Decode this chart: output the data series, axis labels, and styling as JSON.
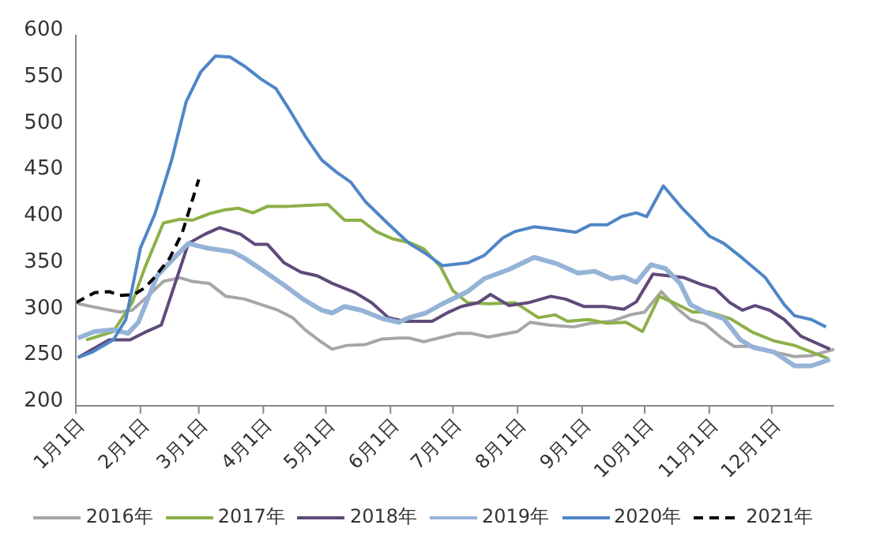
{
  "chart_data": {
    "type": "line",
    "ylim": [
      200,
      600
    ],
    "yticks": [
      200,
      250,
      300,
      350,
      400,
      450,
      500,
      550,
      600
    ],
    "xlim": [
      "--01-01",
      "--12-31"
    ],
    "xticks": [
      {
        "value": "--01-01",
        "label": "1月1日"
      },
      {
        "value": "--02-01",
        "label": "2月1日"
      },
      {
        "value": "--03-01",
        "label": "3月1日"
      },
      {
        "value": "--04-01",
        "label": "4月1日"
      },
      {
        "value": "--05-01",
        "label": "5月1日"
      },
      {
        "value": "--06-01",
        "label": "6月1日"
      },
      {
        "value": "--07-01",
        "label": "7月1日"
      },
      {
        "value": "--08-01",
        "label": "8月1日"
      },
      {
        "value": "--09-01",
        "label": "9月1日"
      },
      {
        "value": "--10-01",
        "label": "10月1日"
      },
      {
        "value": "--11-01",
        "label": "11月1日"
      },
      {
        "value": "--12-01",
        "label": "12月1日"
      }
    ],
    "grid": false,
    "legend": "bottom",
    "marker": "none",
    "series": [
      {
        "name": "2016年",
        "color": "#a6a6a6",
        "line_style": "solid",
        "x": [
          "--01-02",
          "--01-13",
          "--01-22",
          "--01-28",
          "--02-04",
          "--02-12",
          "--02-20",
          "--02-26",
          "--03-06",
          "--03-14",
          "--03-23",
          "--03-31",
          "--04-08",
          "--04-15",
          "--04-21",
          "--04-28",
          "--05-04",
          "--05-11",
          "--05-20",
          "--05-28",
          "--06-05",
          "--06-10",
          "--06-17",
          "--06-26",
          "--07-03",
          "--07-10",
          "--07-18",
          "--07-25",
          "--08-01",
          "--08-07",
          "--08-16",
          "--08-28",
          "--09-05",
          "--09-15",
          "--09-24",
          "--10-01",
          "--10-09",
          "--10-16",
          "--10-23",
          "--10-30",
          "--11-07",
          "--11-13",
          "--11-22",
          "--12-02",
          "--12-12",
          "--12-20",
          "--12-31"
        ],
        "values": [
          310,
          305,
          301,
          303,
          317,
          334,
          338,
          334,
          332,
          318,
          315,
          309,
          303,
          295,
          282,
          270,
          261,
          265,
          266,
          272,
          273,
          273,
          269,
          274,
          278,
          278,
          274,
          277,
          280,
          290,
          287,
          285,
          289,
          291,
          298,
          301,
          323,
          306,
          293,
          288,
          273,
          264,
          264,
          258,
          253,
          254,
          261
        ]
      },
      {
        "name": "2017年",
        "color": "#8db048",
        "line_style": "solid",
        "x": [
          "--01-06",
          "--01-19",
          "--01-28",
          "--02-03",
          "--02-12",
          "--02-20",
          "--02-26",
          "--03-06",
          "--03-13",
          "--03-20",
          "--03-27",
          "--04-03",
          "--04-13",
          "--04-21",
          "--05-02",
          "--05-10",
          "--05-18",
          "--05-25",
          "--06-02",
          "--06-10",
          "--06-17",
          "--06-25",
          "--07-01",
          "--07-08",
          "--07-18",
          "--07-31",
          "--08-11",
          "--08-19",
          "--08-25",
          "--09-04",
          "--09-13",
          "--09-22",
          "--09-30",
          "--10-08",
          "--10-15",
          "--10-24",
          "--11-01",
          "--11-11",
          "--11-22",
          "--12-02",
          "--12-12",
          "--12-28"
        ],
        "values": [
          271,
          280,
          311,
          348,
          397,
          401,
          400,
          407,
          411,
          413,
          408,
          415,
          415,
          416,
          417,
          400,
          400,
          388,
          380,
          376,
          369,
          350,
          324,
          311,
          310,
          311,
          295,
          298,
          291,
          293,
          289,
          290,
          280,
          318,
          311,
          301,
          301,
          294,
          279,
          270,
          265,
          251
        ]
      },
      {
        "name": "2018年",
        "color": "#5f4a7b",
        "line_style": "solid",
        "x": [
          "--01-02",
          "--01-17",
          "--01-27",
          "--02-03",
          "--02-11",
          "--02-24",
          "--03-04",
          "--03-11",
          "--03-21",
          "--03-28",
          "--04-03",
          "--04-11",
          "--04-19",
          "--04-27",
          "--05-04",
          "--05-15",
          "--05-23",
          "--05-31",
          "--06-08",
          "--06-21",
          "--06-29",
          "--07-05",
          "--07-13",
          "--07-19",
          "--07-28",
          "--08-06",
          "--08-17",
          "--08-24",
          "--09-02",
          "--09-12",
          "--09-21",
          "--09-27",
          "--10-05",
          "--10-13",
          "--10-20",
          "--10-28",
          "--11-04",
          "--11-11",
          "--11-17",
          "--11-23",
          "--11-30",
          "--12-07",
          "--12-15",
          "--12-29"
        ],
        "values": [
          252,
          271,
          271,
          279,
          287,
          375,
          385,
          392,
          385,
          374,
          374,
          354,
          344,
          340,
          332,
          322,
          311,
          295,
          291,
          291,
          301,
          307,
          311,
          320,
          308,
          311,
          318,
          315,
          307,
          307,
          304,
          312,
          342,
          340,
          338,
          331,
          326,
          311,
          303,
          308,
          303,
          293,
          275,
          261
        ]
      },
      {
        "name": "2019年",
        "color": "#95b3d7",
        "line_style": "solid",
        "x": [
          "--01-02",
          "--01-10",
          "--01-19",
          "--01-26",
          "--01-31",
          "--02-09",
          "--02-17",
          "--02-24",
          "--03-05",
          "--03-17",
          "--03-23",
          "--03-31",
          "--04-11",
          "--04-20",
          "--04-29",
          "--05-04",
          "--05-10",
          "--05-18",
          "--05-28",
          "--06-05",
          "--06-10",
          "--06-18",
          "--06-26",
          "--07-08",
          "--07-16",
          "--07-28",
          "--08-09",
          "--08-20",
          "--08-30",
          "--09-07",
          "--09-15",
          "--09-21",
          "--09-27",
          "--10-04",
          "--10-11",
          "--10-18",
          "--10-23",
          "--10-30",
          "--11-08",
          "--11-16",
          "--11-22",
          "--12-02",
          "--12-12",
          "--12-20",
          "--12-29"
        ],
        "values": [
          273,
          280,
          282,
          278,
          290,
          340,
          359,
          375,
          370,
          366,
          359,
          347,
          330,
          315,
          303,
          300,
          307,
          303,
          294,
          290,
          295,
          300,
          310,
          323,
          337,
          347,
          360,
          353,
          343,
          345,
          337,
          339,
          333,
          352,
          348,
          332,
          309,
          301,
          294,
          271,
          263,
          258,
          243,
          243,
          250
        ]
      },
      {
        "name": "2020年",
        "color": "#4f86c6",
        "line_style": "solid",
        "x": [
          "--01-02",
          "--01-09",
          "--01-19",
          "--01-25",
          "--02-01",
          "--02-08",
          "--02-16",
          "--02-23",
          "--03-02",
          "--03-09",
          "--03-16",
          "--03-23",
          "--03-31",
          "--04-07",
          "--04-13",
          "--04-21",
          "--04-29",
          "--05-06",
          "--05-13",
          "--05-20",
          "--05-31",
          "--06-10",
          "--06-18",
          "--06-26",
          "--07-08",
          "--07-16",
          "--07-25",
          "--07-31",
          "--08-09",
          "--08-16",
          "--08-29",
          "--09-05",
          "--09-13",
          "--09-20",
          "--09-27",
          "--10-02",
          "--10-10",
          "--10-19",
          "--11-01",
          "--11-08",
          "--11-17",
          "--11-28",
          "--12-07",
          "--12-12",
          "--12-20",
          "--12-27"
        ],
        "values": [
          252,
          258,
          271,
          293,
          370,
          407,
          465,
          528,
          560,
          577,
          576,
          566,
          552,
          542,
          521,
          491,
          465,
          452,
          441,
          420,
          396,
          375,
          364,
          351,
          354,
          362,
          381,
          388,
          393,
          391,
          387,
          395,
          395,
          404,
          408,
          404,
          437,
          413,
          383,
          375,
          359,
          338,
          309,
          297,
          293,
          285
        ]
      },
      {
        "name": "2021年",
        "color": "#000000",
        "line_style": "dashed",
        "x": [
          "--01-01",
          "--01-10",
          "--01-17",
          "--01-22",
          "--01-29",
          "--02-03",
          "--02-08",
          "--02-15",
          "--02-21",
          "--03-01"
        ],
        "values": [
          311,
          322,
          323,
          319,
          320,
          327,
          339,
          359,
          386,
          444
        ]
      }
    ]
  }
}
